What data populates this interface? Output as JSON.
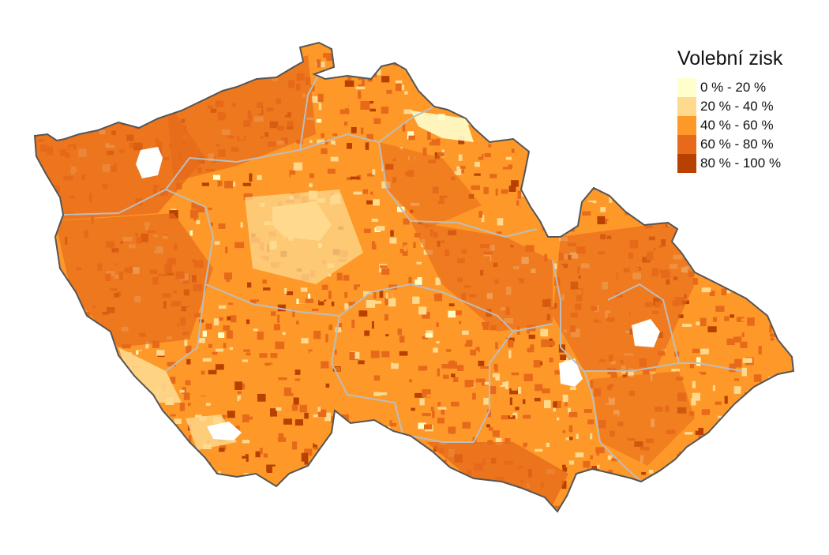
{
  "legend": {
    "title": "Volební zisk",
    "items": [
      {
        "label": "0 % - 20 %",
        "color": "#ffffcc"
      },
      {
        "label": "20 % - 40 %",
        "color": "#fed98e"
      },
      {
        "label": "40 % - 60 %",
        "color": "#fe9929"
      },
      {
        "label": "60 % - 80 %",
        "color": "#e66a1a"
      },
      {
        "label": "80 % - 100 %",
        "color": "#b84000"
      }
    ]
  },
  "colors": {
    "background": "#ffffff",
    "country_outline": "#555555",
    "region_borders": "#bdbdbd",
    "no_data": "#ffffff"
  }
}
